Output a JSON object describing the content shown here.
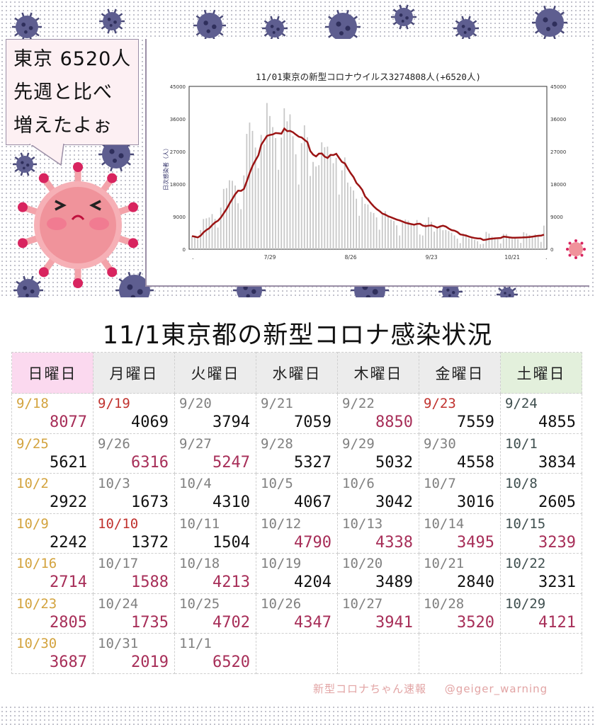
{
  "speech_bubble": {
    "lines": [
      "東京 6520人",
      "先週と比べ",
      "増えたよぉ"
    ]
  },
  "chart_data": {
    "type": "bar",
    "title": "11/01東京の新型コロナウイルス3274808人(+6520人)",
    "ylabel": "日次感染者（人）",
    "xlabel": "",
    "ylim": [
      0,
      45000
    ],
    "y_ticks": [
      0,
      9000,
      18000,
      27000,
      36000,
      45000
    ],
    "x_ticks": [
      {
        "label": "7/29",
        "day_index": 27
      },
      {
        "label": "8/26",
        "day_index": 55
      },
      {
        "label": "9/23",
        "day_index": 83
      },
      {
        "label": "10/21",
        "day_index": 111
      }
    ],
    "x_end_marks": [
      ".",
      "."
    ],
    "series": [
      {
        "name": "daily_cases",
        "type": "bar",
        "color": "#c8c8c8",
        "values": [
          3616,
          3330,
          2772,
          5302,
          8341,
          8529,
          8777,
          9716,
          8382,
          5985,
          11511,
          16662,
          16878,
          19059,
          18919,
          17599,
          12696,
          11065,
          20401,
          31878,
          34995,
          32698,
          28112,
          22387,
          31593,
          29036,
          40406,
          36814,
          33753,
          30716,
          21958,
          30842,
          38940,
          35339,
          37278,
          31222,
          26225,
          17873,
          29312,
          34243,
          30938,
          20245,
          24119,
          22847,
          23227,
          29542,
          28195,
          28357,
          26237,
          23773,
          25270,
          15105,
          21796,
          25362,
          18420,
          17292,
          16223,
          13952,
          9240,
          14448,
          12545,
          12367,
          10304,
          10000,
          8800,
          5400,
          9500,
          10500,
          9300,
          8200,
          7800,
          6600,
          3800,
          7300,
          8200,
          7900,
          7000,
          6700,
          8077,
          4069,
          3794,
          7059,
          8850,
          7559,
          4855,
          5621,
          6316,
          5247,
          5327,
          5032,
          4558,
          3834,
          2922,
          1673,
          4310,
          4067,
          3042,
          3016,
          2605,
          2242,
          1372,
          1504,
          4790,
          4338,
          3495,
          3239,
          2714,
          1588,
          4213,
          4204,
          3489,
          2840,
          3231,
          2805,
          1735,
          4702,
          4347,
          3941,
          3520,
          4121,
          3687,
          2019,
          6520
        ]
      },
      {
        "name": "7day_average",
        "type": "line",
        "color": "#9b1414",
        "window": 7
      }
    ]
  },
  "main_title": "11/1東京都の新型コロナ感染状況",
  "table": {
    "headers": [
      {
        "label": "日曜日",
        "style": "sun"
      },
      {
        "label": "月曜日",
        "style": ""
      },
      {
        "label": "火曜日",
        "style": ""
      },
      {
        "label": "水曜日",
        "style": ""
      },
      {
        "label": "木曜日",
        "style": ""
      },
      {
        "label": "金曜日",
        "style": ""
      },
      {
        "label": "土曜日",
        "style": "sat"
      }
    ],
    "weeks": [
      [
        {
          "date": "9/18",
          "count": "8077",
          "ds": "sun",
          "up": true
        },
        {
          "date": "9/19",
          "count": "4069",
          "ds": "hol",
          "up": false
        },
        {
          "date": "9/20",
          "count": "3794",
          "ds": "",
          "up": false
        },
        {
          "date": "9/21",
          "count": "7059",
          "ds": "",
          "up": false
        },
        {
          "date": "9/22",
          "count": "8850",
          "ds": "",
          "up": true
        },
        {
          "date": "9/23",
          "count": "7559",
          "ds": "hol",
          "up": false
        },
        {
          "date": "9/24",
          "count": "4855",
          "ds": "sat",
          "up": false
        }
      ],
      [
        {
          "date": "9/25",
          "count": "5621",
          "ds": "sun",
          "up": false
        },
        {
          "date": "9/26",
          "count": "6316",
          "ds": "",
          "up": true
        },
        {
          "date": "9/27",
          "count": "5247",
          "ds": "",
          "up": true
        },
        {
          "date": "9/28",
          "count": "5327",
          "ds": "",
          "up": false
        },
        {
          "date": "9/29",
          "count": "5032",
          "ds": "",
          "up": false
        },
        {
          "date": "9/30",
          "count": "4558",
          "ds": "",
          "up": false
        },
        {
          "date": "10/1",
          "count": "3834",
          "ds": "sat",
          "up": false
        }
      ],
      [
        {
          "date": "10/2",
          "count": "2922",
          "ds": "sun",
          "up": false
        },
        {
          "date": "10/3",
          "count": "1673",
          "ds": "",
          "up": false
        },
        {
          "date": "10/4",
          "count": "4310",
          "ds": "",
          "up": false
        },
        {
          "date": "10/5",
          "count": "4067",
          "ds": "",
          "up": false
        },
        {
          "date": "10/6",
          "count": "3042",
          "ds": "",
          "up": false
        },
        {
          "date": "10/7",
          "count": "3016",
          "ds": "",
          "up": false
        },
        {
          "date": "10/8",
          "count": "2605",
          "ds": "sat",
          "up": false
        }
      ],
      [
        {
          "date": "10/9",
          "count": "2242",
          "ds": "sun",
          "up": false
        },
        {
          "date": "10/10",
          "count": "1372",
          "ds": "hol",
          "up": false
        },
        {
          "date": "10/11",
          "count": "1504",
          "ds": "",
          "up": false
        },
        {
          "date": "10/12",
          "count": "4790",
          "ds": "",
          "up": true
        },
        {
          "date": "10/13",
          "count": "4338",
          "ds": "",
          "up": true
        },
        {
          "date": "10/14",
          "count": "3495",
          "ds": "",
          "up": true
        },
        {
          "date": "10/15",
          "count": "3239",
          "ds": "sat",
          "up": true
        }
      ],
      [
        {
          "date": "10/16",
          "count": "2714",
          "ds": "sun",
          "up": true
        },
        {
          "date": "10/17",
          "count": "1588",
          "ds": "",
          "up": true
        },
        {
          "date": "10/18",
          "count": "4213",
          "ds": "",
          "up": true
        },
        {
          "date": "10/19",
          "count": "4204",
          "ds": "",
          "up": false
        },
        {
          "date": "10/20",
          "count": "3489",
          "ds": "",
          "up": false
        },
        {
          "date": "10/21",
          "count": "2840",
          "ds": "",
          "up": false
        },
        {
          "date": "10/22",
          "count": "3231",
          "ds": "sat",
          "up": false
        }
      ],
      [
        {
          "date": "10/23",
          "count": "2805",
          "ds": "sun",
          "up": true
        },
        {
          "date": "10/24",
          "count": "1735",
          "ds": "",
          "up": true
        },
        {
          "date": "10/25",
          "count": "4702",
          "ds": "",
          "up": true
        },
        {
          "date": "10/26",
          "count": "4347",
          "ds": "",
          "up": true
        },
        {
          "date": "10/27",
          "count": "3941",
          "ds": "",
          "up": true
        },
        {
          "date": "10/28",
          "count": "3520",
          "ds": "",
          "up": true
        },
        {
          "date": "10/29",
          "count": "4121",
          "ds": "sat",
          "up": true
        }
      ],
      [
        {
          "date": "10/30",
          "count": "3687",
          "ds": "sun",
          "up": true
        },
        {
          "date": "10/31",
          "count": "2019",
          "ds": "",
          "up": true
        },
        {
          "date": "11/1",
          "count": "6520",
          "ds": "",
          "up": true
        },
        null,
        null,
        null,
        null
      ]
    ]
  },
  "credit": {
    "name": "新型コロナちゃん速報",
    "handle": "@geiger_warning"
  },
  "colors": {
    "increase": "#a72e58",
    "sunday_date": "#d3a33e",
    "holiday_date": "#c0322e",
    "virus_deco": "#5a5a8c",
    "mascot": "#f0939b"
  }
}
